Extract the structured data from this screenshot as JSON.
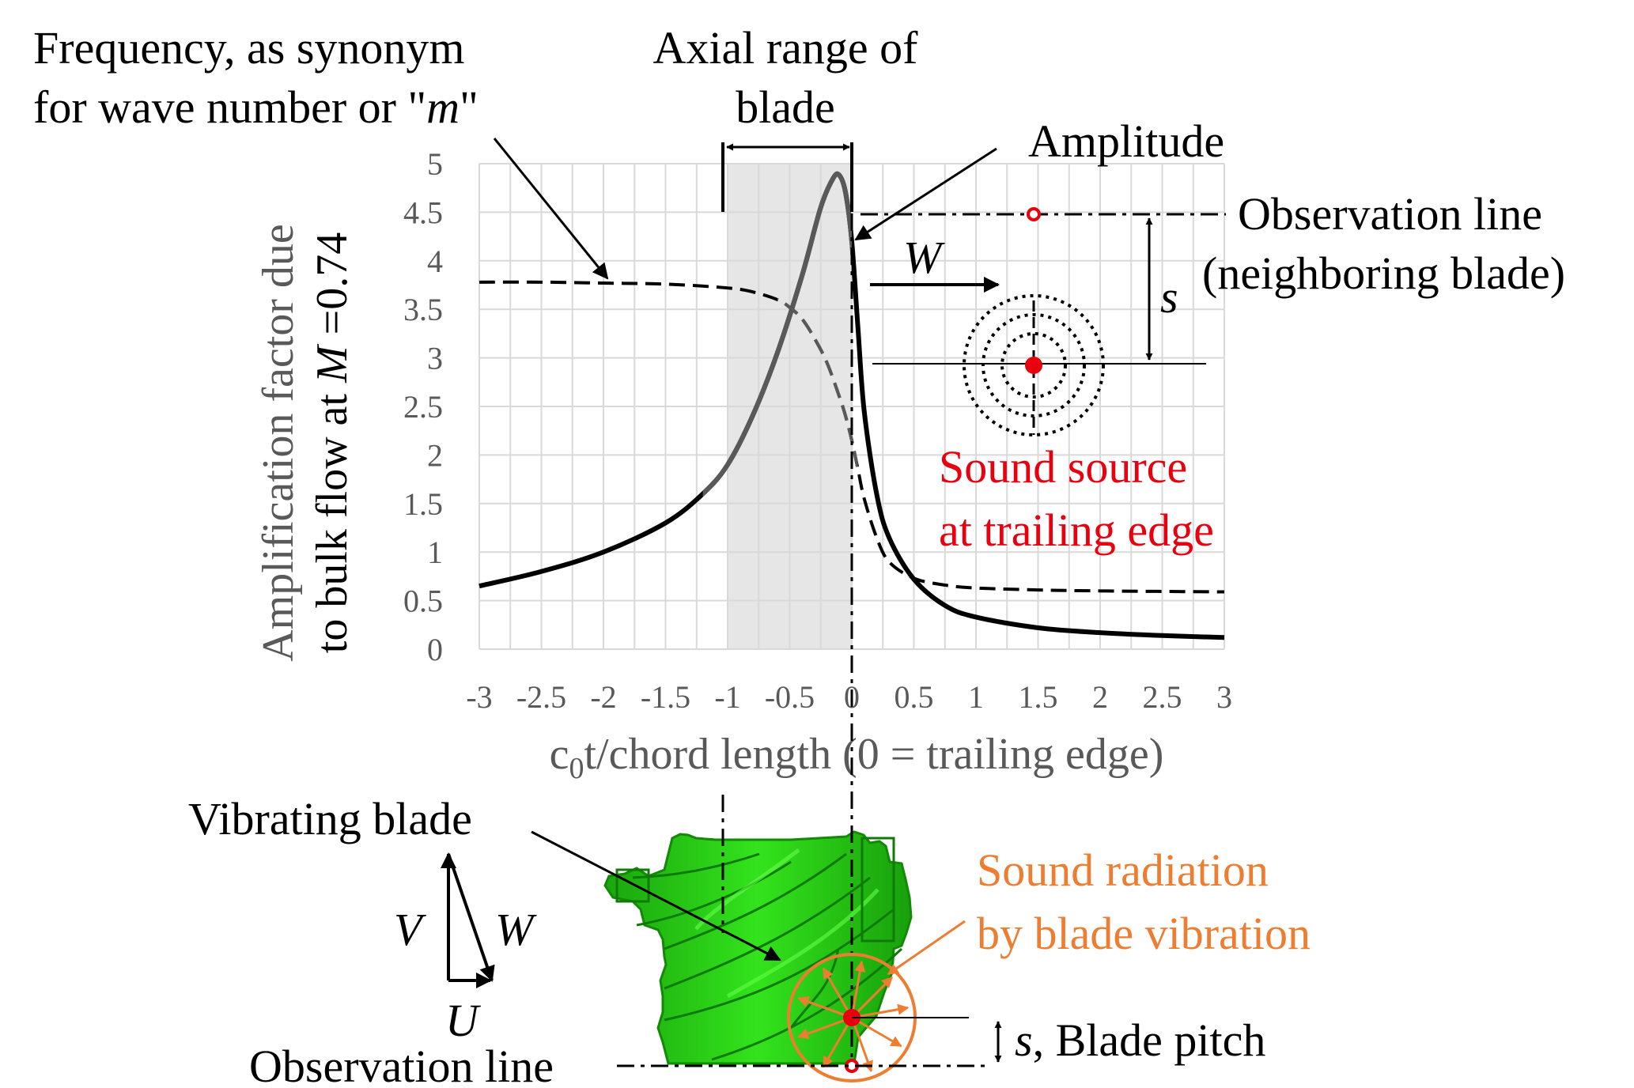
{
  "chart_data": {
    "type": "line",
    "xlabel_prefix": "c",
    "xlabel_sub": "0",
    "xlabel_rest": "t/chord length (0 = trailing edge)",
    "ylabel_line1": "Amplification factor due",
    "ylabel_line2_prefix": "to bulk flow at ",
    "ylabel_line2_italic": "M",
    "ylabel_line2_suffix": " =0.74",
    "xlim": [
      -3,
      3
    ],
    "ylim": [
      0,
      5
    ],
    "x_ticks": [
      "-3",
      "-2.5",
      "-2",
      "-1.5",
      "-1",
      "-0.5",
      "0",
      "0.5",
      "1",
      "1.5",
      "2",
      "2.5",
      "3"
    ],
    "y_ticks": [
      "0",
      "0.5",
      "1",
      "1.5",
      "2",
      "2.5",
      "3",
      "3.5",
      "4",
      "4.5",
      "5"
    ],
    "grid": true,
    "blade_range": [
      -1,
      0
    ],
    "series": [
      {
        "style": "solid",
        "color": "#000000",
        "x": [
          -3,
          -2.5,
          -2,
          -1.5,
          -1.2,
          -1,
          -0.8,
          -0.6,
          -0.4,
          -0.25,
          -0.15,
          -0.1,
          -0.05,
          0,
          0.05,
          0.1,
          0.2,
          0.3,
          0.5,
          0.75,
          1,
          1.5,
          2,
          2.5,
          3
        ],
        "y": [
          0.65,
          0.8,
          1.0,
          1.3,
          1.6,
          1.9,
          2.4,
          3.05,
          3.85,
          4.55,
          4.85,
          4.88,
          4.7,
          4.2,
          3.3,
          2.45,
          1.6,
          1.15,
          0.72,
          0.45,
          0.33,
          0.22,
          0.17,
          0.14,
          0.12
        ]
      },
      {
        "style": "dashed",
        "color": "#000000",
        "x": [
          -3,
          -2.5,
          -2,
          -1.5,
          -1,
          -0.8,
          -0.6,
          -0.5,
          -0.4,
          -0.3,
          -0.2,
          -0.1,
          -0.05,
          0,
          0.05,
          0.1,
          0.2,
          0.3,
          0.5,
          0.75,
          1,
          1.5,
          2,
          3
        ],
        "y": [
          3.78,
          3.78,
          3.77,
          3.76,
          3.72,
          3.68,
          3.6,
          3.52,
          3.4,
          3.2,
          2.95,
          2.6,
          2.4,
          2.15,
          1.85,
          1.55,
          1.15,
          0.9,
          0.73,
          0.66,
          0.63,
          0.61,
          0.6,
          0.59
        ]
      }
    ]
  },
  "annotations": {
    "frequency_line1": "Frequency, as synonym",
    "frequency_line2_prefix": "for wave number or \"",
    "frequency_line2_italic": "m",
    "frequency_line2_suffix": "\"",
    "axial_line1": "Axial range of",
    "axial_line2": "blade",
    "amplitude": "Amplitude",
    "observation_line_label": "Observation line",
    "neighboring_blade": "(neighboring blade)",
    "s_symbol": "s",
    "w_symbol": "W",
    "sound_source_line1": "Sound source",
    "sound_source_line2": "at trailing edge",
    "vibrating_blade": "Vibrating blade",
    "sound_radiation_line1": "Sound radiation",
    "sound_radiation_line2": "by blade vibration",
    "v_symbol": "V",
    "u_symbol": "U",
    "blade_pitch": ", Blade pitch",
    "observation_line_bottom": "Observation line"
  },
  "colors": {
    "red": "#e8000f",
    "orange": "#ed7d31",
    "impeller_green": "#22cc11",
    "gray_text": "#595959",
    "grid": "#d9d9d9",
    "blade_shade": "#e6e6e6"
  }
}
